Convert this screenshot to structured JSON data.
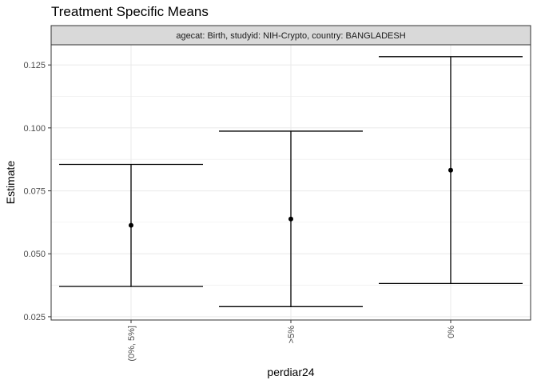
{
  "chart_data": {
    "type": "errorbar",
    "title": "Treatment Specific Means",
    "facet_label": "agecat: Birth, studyid: NIH-Crypto, country: BANGLADESH",
    "xlabel": "perdiar24",
    "ylabel": "Estimate",
    "categories": [
      "(0%, 5%]",
      ">5%",
      "0%"
    ],
    "estimates": [
      0.0613,
      0.0638,
      0.0832
    ],
    "lower": [
      0.037,
      0.029,
      0.0382
    ],
    "upper": [
      0.0855,
      0.0987,
      0.1283
    ],
    "yticks": [
      0.025,
      0.05,
      0.075,
      0.1,
      0.125
    ],
    "ytick_labels": [
      "0.025",
      "0.050",
      "0.075",
      "0.100",
      "0.125"
    ],
    "ylim": [
      0.0237,
      0.133
    ],
    "grid": true,
    "colors": {
      "strip_fill": "#d9d9d9",
      "panel_border": "#333333",
      "grid": "#ebebeb",
      "mark": "#000000"
    }
  }
}
